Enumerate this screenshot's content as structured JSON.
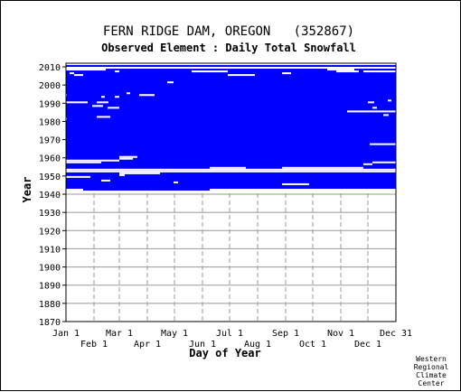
{
  "chart_data": {
    "type": "heatmap",
    "title": "FERN RIDGE DAM, OREGON   (352867)",
    "subtitle": "Observed Element : Daily Total Snowfall",
    "xlabel": "Day of Year",
    "ylabel": "Year",
    "x_ticks_top_row": [
      "Jan 1",
      "Mar 1",
      "May 1",
      "Jul 1",
      "Sep 1",
      "Nov 1",
      "Dec 31"
    ],
    "x_ticks_bottom_row": [
      "Feb 1",
      "Apr 1",
      "Jun 1",
      "Aug 1",
      "Oct 1",
      "Dec 1"
    ],
    "y_ticks": [
      1870,
      1880,
      1890,
      1900,
      1910,
      1920,
      1930,
      1940,
      1950,
      1960,
      1970,
      1980,
      1990,
      2000,
      2010
    ],
    "ylim": [
      1870,
      2012
    ],
    "xlim_day_of_year": [
      1,
      366
    ],
    "grid": true,
    "coverage_color": "#0000ff",
    "data_coverage": {
      "first_year": 1942,
      "last_year": 2012,
      "mostly_missing_years": [
        1952,
        1953,
        2009,
        2011
      ]
    }
  },
  "credit": [
    "Western",
    "Regional",
    "Climate",
    "Center"
  ],
  "colors": {
    "background": "#ffffff",
    "data": "#0000ff",
    "grid": "#999999",
    "gaps": "#ffffff"
  }
}
